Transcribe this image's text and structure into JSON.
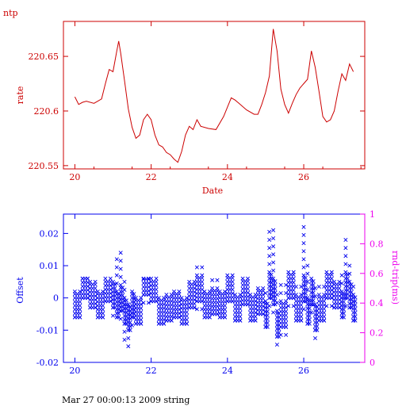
{
  "chart_data": [
    {
      "type": "line",
      "title": "ntp",
      "xlabel": "Date",
      "ylabel": "rate",
      "xlim": [
        19.7,
        27.6
      ],
      "ylim": [
        220.547,
        220.682
      ],
      "xticks": [
        "20",
        "22",
        "24",
        "26"
      ],
      "yticks": [
        "220.55",
        "220.6",
        "220.65"
      ],
      "color": "#cc0000",
      "series": [
        {
          "x": [
            20.0,
            20.1,
            20.2,
            20.3,
            20.5,
            20.7,
            20.8,
            20.9,
            21.0,
            21.1,
            21.15,
            21.2,
            21.3,
            21.4,
            21.5,
            21.6,
            21.7,
            21.8,
            21.9,
            22.0,
            22.1,
            22.2,
            22.3,
            22.4,
            22.5,
            22.6,
            22.7,
            22.8,
            22.9,
            23.0,
            23.1,
            23.2,
            23.3,
            23.5,
            23.7,
            23.9,
            24.1,
            24.2,
            24.3,
            24.5,
            24.7,
            24.8,
            24.9,
            25.0,
            25.1,
            25.2,
            25.3,
            25.4,
            25.5,
            25.6,
            25.7,
            25.8,
            25.9,
            26.0,
            26.1,
            26.2,
            26.3,
            26.4,
            26.5,
            26.6,
            26.7,
            26.8,
            26.9,
            27.0,
            27.1,
            27.2,
            27.3
          ],
          "y": [
            220.613,
            220.606,
            220.608,
            220.609,
            220.607,
            220.611,
            220.625,
            220.638,
            220.636,
            220.655,
            220.664,
            220.653,
            220.628,
            220.602,
            220.585,
            220.575,
            220.578,
            220.592,
            220.597,
            220.592,
            220.578,
            220.569,
            220.567,
            220.562,
            220.56,
            220.556,
            220.553,
            220.563,
            220.578,
            220.586,
            220.583,
            220.592,
            220.586,
            220.584,
            220.583,
            220.595,
            220.612,
            220.61,
            220.607,
            220.601,
            220.597,
            220.597,
            220.606,
            220.617,
            220.632,
            220.675,
            220.655,
            220.62,
            220.606,
            220.598,
            220.607,
            220.615,
            220.621,
            220.625,
            220.629,
            220.655,
            220.64,
            220.618,
            220.595,
            220.59,
            220.592,
            220.6,
            220.618,
            220.634,
            220.628,
            220.643,
            220.636
          ]
        }
      ]
    },
    {
      "type": "scatter",
      "xlabel": "",
      "ylabel": "Offset",
      "y2label": "rnd-trip(ms)",
      "xlim": [
        19.7,
        27.6
      ],
      "ylim": [
        -0.02,
        0.026
      ],
      "y2lim": [
        0,
        1
      ],
      "xticks": [
        "20",
        "22",
        "24",
        "26"
      ],
      "yticks": [
        "-0.02",
        "-0.01",
        "0",
        "0.01",
        "0.02"
      ],
      "y2ticks": [
        "0",
        "0.2",
        "0.4",
        "0.6",
        "0.8",
        "1"
      ],
      "color": "#0000ee",
      "axis_color_right": "#ee00ee",
      "marker": "x",
      "series": [
        {
          "x": [
            20.0,
            20.2,
            20.4,
            20.6,
            20.8,
            21.0,
            21.1,
            21.2,
            21.3,
            21.4,
            21.5,
            21.6,
            21.8,
            22.0,
            22.2,
            22.4,
            22.6,
            22.8,
            23.0,
            23.2,
            23.4,
            23.6,
            23.8,
            24.0,
            24.2,
            24.4,
            24.6,
            24.8,
            25.0,
            25.1,
            25.2,
            25.3,
            25.4,
            25.6,
            25.8,
            26.0,
            26.1,
            26.2,
            26.3,
            26.4,
            26.6,
            26.8,
            27.0,
            27.1,
            27.2,
            27.3
          ],
          "y": [
            -0.002,
            0.004,
            0.001,
            -0.002,
            0.003,
            0.001,
            -0.002,
            0.0,
            -0.004,
            -0.006,
            -0.002,
            -0.004,
            0.005,
            0.003,
            -0.004,
            -0.003,
            -0.002,
            -0.004,
            0.001,
            0.003,
            -0.002,
            -0.001,
            -0.002,
            0.003,
            -0.003,
            0.002,
            -0.003,
            -0.001,
            -0.005,
            0.004,
            0.002,
            -0.008,
            -0.005,
            0.004,
            -0.003,
            0.003,
            -0.004,
            0.002,
            -0.006,
            -0.003,
            0.004,
            0.001,
            -0.002,
            0.004,
            0.001,
            -0.003
          ],
          "y_min": [
            -0.008,
            -0.002,
            -0.004,
            -0.006,
            -0.003,
            -0.006,
            -0.008,
            -0.009,
            -0.015,
            -0.016,
            -0.01,
            -0.008,
            -0.002,
            -0.003,
            -0.008,
            -0.007,
            -0.008,
            -0.008,
            -0.005,
            -0.004,
            -0.007,
            -0.006,
            -0.008,
            -0.003,
            -0.007,
            -0.004,
            -0.008,
            -0.006,
            -0.01,
            -0.004,
            -0.006,
            -0.015,
            -0.012,
            -0.004,
            -0.009,
            -0.004,
            -0.01,
            -0.005,
            -0.013,
            -0.009,
            -0.003,
            -0.004,
            -0.007,
            -0.003,
            -0.004,
            -0.008
          ],
          "y_max": [
            0.002,
            0.006,
            0.005,
            0.003,
            0.006,
            0.005,
            0.014,
            0.016,
            0.005,
            -0.001,
            0.003,
            0.002,
            0.006,
            0.006,
            0.001,
            0.002,
            0.003,
            0.001,
            0.006,
            0.011,
            0.004,
            0.006,
            0.004,
            0.007,
            0.002,
            0.007,
            0.003,
            0.005,
            0.002,
            0.021,
            0.023,
            0.003,
            0.006,
            0.009,
            0.004,
            0.024,
            0.012,
            0.008,
            0.003,
            0.004,
            0.009,
            0.007,
            0.008,
            0.02,
            0.011,
            0.005
          ]
        }
      ]
    }
  ],
  "footer": "Mar 27 00:00:13 2009 string"
}
